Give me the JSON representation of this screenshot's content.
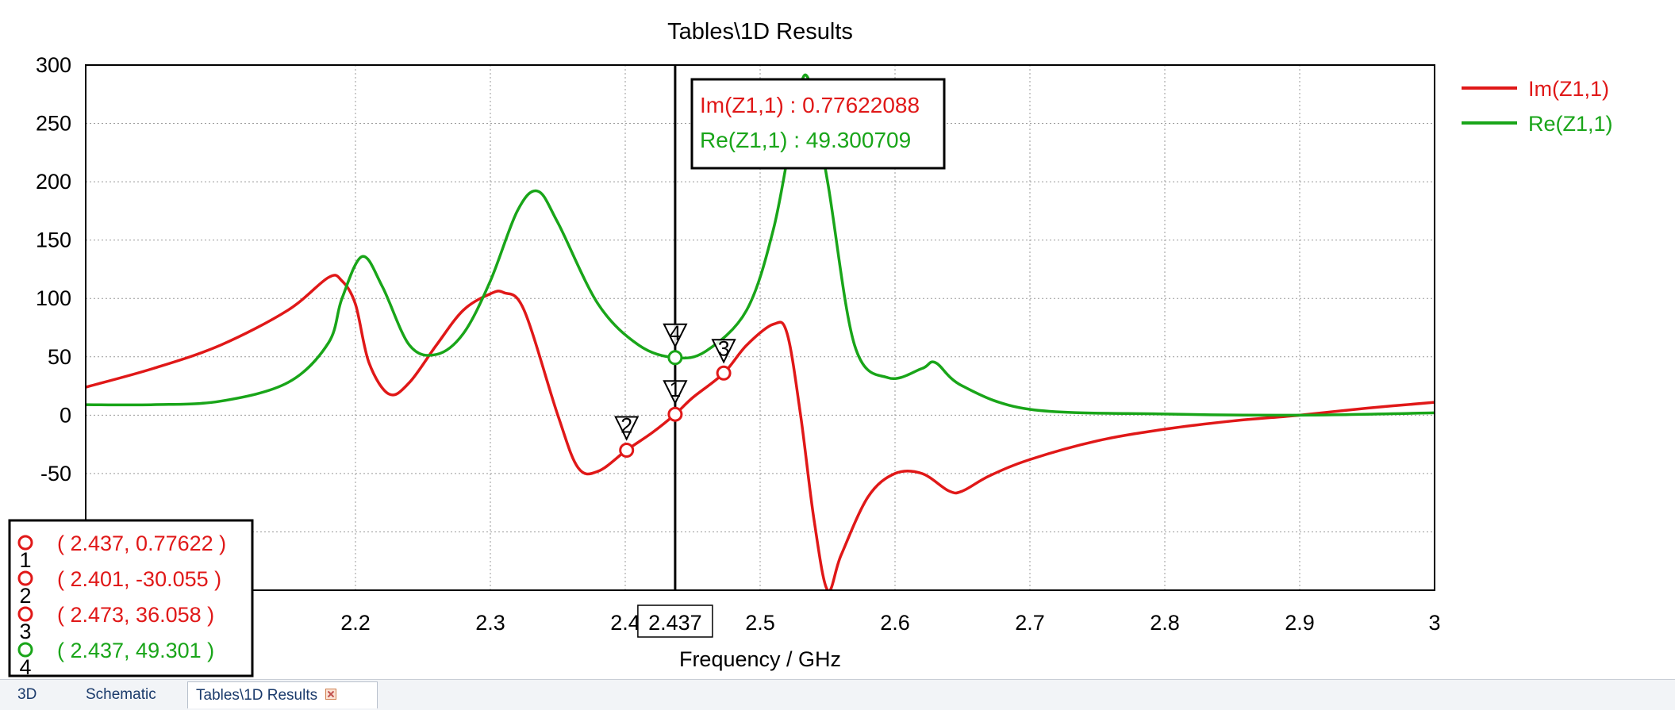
{
  "chart_data": {
    "type": "line",
    "title": "Tables\\1D Results",
    "xlabel": "Frequency / GHz",
    "ylabel": "",
    "xlim": [
      2.0,
      3.0
    ],
    "ylim": [
      -150,
      300
    ],
    "x_ticks": [
      2.2,
      2.3,
      2.4,
      2.5,
      2.6,
      2.7,
      2.8,
      2.9,
      3
    ],
    "x_tick_labels": [
      "2.2",
      "2.3",
      "2.4",
      "2.5",
      "2.6",
      "2.7",
      "2.8",
      "2.9",
      "3"
    ],
    "y_ticks": [
      300,
      250,
      200,
      150,
      100,
      50,
      0,
      -50
    ],
    "y_tick_labels": [
      "300",
      "250",
      "200",
      "150",
      "100",
      "50",
      "0",
      "-50"
    ],
    "grid": true,
    "legend_position": "right",
    "series": [
      {
        "name": "Im(Z1,1)",
        "color": "#e01818",
        "x": [
          2.0,
          2.05,
          2.1,
          2.15,
          2.18,
          2.19,
          2.2,
          2.21,
          2.225,
          2.24,
          2.26,
          2.28,
          2.3,
          2.31,
          2.325,
          2.35,
          2.365,
          2.38,
          2.401,
          2.42,
          2.437,
          2.45,
          2.473,
          2.49,
          2.51,
          2.52,
          2.53,
          2.54,
          2.55,
          2.56,
          2.58,
          2.6,
          2.62,
          2.64,
          2.65,
          2.67,
          2.7,
          2.75,
          2.8,
          2.85,
          2.9,
          2.95,
          3.0
        ],
        "y": [
          24,
          40,
          60,
          90,
          118,
          115,
          95,
          45,
          18,
          28,
          60,
          90,
          104,
          105,
          90,
          0,
          -45,
          -48,
          -30,
          -15,
          0.78,
          15,
          36,
          60,
          78,
          70,
          0,
          -90,
          -150,
          -120,
          -70,
          -50,
          -50,
          -65,
          -65,
          -52,
          -38,
          -22,
          -12,
          -5,
          0,
          6,
          11
        ]
      },
      {
        "name": "Re(Z1,1)",
        "color": "#19a519",
        "x": [
          2.0,
          2.05,
          2.1,
          2.15,
          2.18,
          2.19,
          2.205,
          2.22,
          2.24,
          2.26,
          2.28,
          2.3,
          2.32,
          2.335,
          2.35,
          2.38,
          2.41,
          2.437,
          2.46,
          2.49,
          2.51,
          2.525,
          2.535,
          2.55,
          2.57,
          2.595,
          2.62,
          2.63,
          2.65,
          2.7,
          2.8,
          2.9,
          3.0
        ],
        "y": [
          9,
          9,
          12,
          28,
          62,
          100,
          136,
          110,
          60,
          52,
          70,
          115,
          175,
          192,
          165,
          95,
          60,
          49.3,
          55,
          90,
          160,
          250,
          290,
          200,
          60,
          32,
          40,
          45,
          25,
          5,
          1,
          0,
          2
        ]
      }
    ],
    "cursor": {
      "x": 2.437,
      "label": "2.437"
    },
    "readout": [
      {
        "label": "Im(Z1,1) : 0.77622088",
        "color": "#e01818"
      },
      {
        "label": "Re(Z1,1) : 49.300709",
        "color": "#19a519"
      }
    ],
    "markers": [
      {
        "id": "1",
        "x": 2.437,
        "y": 0.77622,
        "series": "Im(Z1,1)",
        "color": "#e01818",
        "coord_label": "( 2.437, 0.77622 )"
      },
      {
        "id": "2",
        "x": 2.401,
        "y": -30.055,
        "series": "Im(Z1,1)",
        "color": "#e01818",
        "coord_label": "( 2.401, -30.055 )"
      },
      {
        "id": "3",
        "x": 2.473,
        "y": 36.058,
        "series": "Im(Z1,1)",
        "color": "#e01818",
        "coord_label": "( 2.473, 36.058 )"
      },
      {
        "id": "4",
        "x": 2.437,
        "y": 49.301,
        "series": "Re(Z1,1)",
        "color": "#19a519",
        "coord_label": "( 2.437, 49.301 )"
      }
    ]
  },
  "tabs": [
    {
      "label": "3D"
    },
    {
      "label": "Schematic"
    },
    {
      "label": "Tables\\1D Results",
      "active": true
    }
  ]
}
